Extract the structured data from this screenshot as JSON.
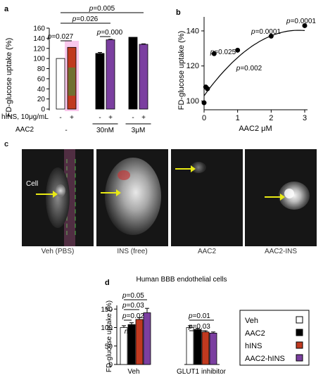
{
  "panel_a": {
    "letter": "a",
    "ylabel": "FD-glucose uptake (%)",
    "yticks": [
      0,
      20,
      40,
      60,
      80,
      100,
      120,
      140,
      160
    ],
    "row_labels": {
      "hins": "hINS, 10μg/mL",
      "aac2": "AAC2"
    },
    "groups": [
      {
        "signs": [
          "-",
          "+"
        ],
        "dose": "-"
      },
      {
        "signs": [
          "-",
          "+"
        ],
        "dose": "30nM"
      },
      {
        "signs": [
          "-",
          "+"
        ],
        "dose": "3μM"
      }
    ],
    "pvalues": [
      "p=0.005",
      "p=0.026",
      "p=0.027",
      "p=0.000"
    ]
  },
  "panel_b": {
    "letter": "b",
    "ylabel": "FD-glucose uptake (%)",
    "xlabel": "AAC2 μM",
    "yticks": [
      100,
      120,
      140
    ],
    "xticks": [
      0,
      1,
      2,
      3
    ],
    "pvalues": [
      "p=0.025",
      "p=0.002",
      "p=0.0001",
      "p=0.0001"
    ]
  },
  "panel_c": {
    "letter": "c",
    "cell_label": "Cell",
    "captions": [
      "Veh (PBS)",
      "INS (free)",
      "AAC2",
      "AAC2-INS"
    ]
  },
  "panel_d": {
    "letter": "d",
    "title": "Human BBB endothelial cells",
    "ylabel": "FD-glucose uptake (%)",
    "yticks": [
      0,
      50,
      100,
      150
    ],
    "group_labels": [
      "Veh",
      "GLUT1 inhibitor"
    ],
    "pvalues_left": [
      "p=0.05",
      "p=0.03",
      "p=0.02",
      "ns"
    ],
    "pvalues_right": [
      "p=0.01",
      "p=0.03"
    ],
    "legend": [
      "Veh",
      "AAC2",
      "hINS",
      "AAC2-hINS"
    ]
  },
  "colors": {
    "veh": "#ffffff",
    "aac2": "#000000",
    "hins": "#c0391f",
    "aac2_hins": "#7b3fa0",
    "pink_highlight": "#f7b5e6",
    "arrow": "#e9ea14"
  },
  "chart_data": [
    {
      "type": "bar",
      "categories": [
        "-",
        "+",
        "-",
        "+",
        "-",
        "+"
      ],
      "values": [
        100,
        122,
        110,
        137,
        142,
        128
      ],
      "errors": [
        0,
        0,
        2,
        1,
        0,
        1
      ],
      "colors": [
        "#ffffff",
        "#c0391f",
        "#000000",
        "#7b3fa0",
        "#000000",
        "#7b3fa0"
      ],
      "ylabel": "FD-glucose uptake (%)",
      "ylim": [
        0,
        160
      ]
    },
    {
      "type": "scatter",
      "x": [
        0,
        0.05,
        0.1,
        0.3,
        1,
        2,
        3
      ],
      "y": [
        99,
        108,
        107,
        127,
        129,
        137,
        143
      ],
      "fit_curve": true,
      "xlabel": "AAC2 μM",
      "ylabel": "FD-glucose uptake (%)",
      "xlim": [
        0,
        3
      ],
      "ylim": [
        95,
        148
      ]
    },
    {
      "type": "bar",
      "categories": [
        "Veh",
        "GLUT1 inhibitor"
      ],
      "series": [
        {
          "name": "Veh",
          "values": [
            100,
            100
          ],
          "errors": [
            5,
            5
          ]
        },
        {
          "name": "AAC2",
          "values": [
            108,
            95
          ],
          "errors": [
            5,
            3
          ]
        },
        {
          "name": "hINS",
          "values": [
            122,
            88
          ],
          "errors": [
            5,
            3
          ]
        },
        {
          "name": "AAC2-hINS",
          "values": [
            140,
            85
          ],
          "errors": [
            12,
            3
          ]
        }
      ],
      "ylabel": "FD-glucose uptake (%)",
      "ylim": [
        0,
        160
      ]
    }
  ]
}
